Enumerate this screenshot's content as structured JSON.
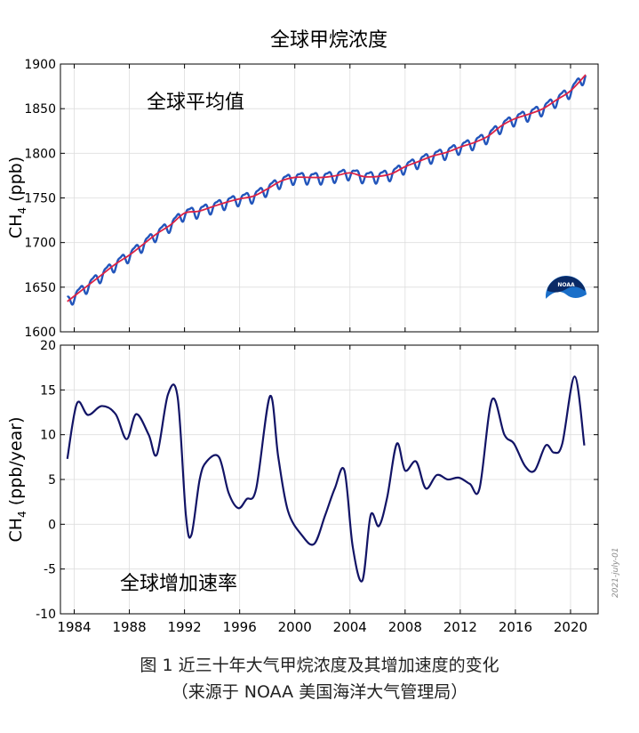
{
  "caption": {
    "line1": "图 1 近三十年大气甲烷浓度及其增加速度的变化",
    "line2": "（来源于 NOAA 美国海洋大气管理局）"
  },
  "date_stamp": "2021-july-01",
  "logo_text": "NOAA",
  "colors": {
    "monthly": "#2255bb",
    "trend": "#dd2244",
    "rate": "#121466",
    "grid": "#dddddd",
    "logo_blue": "#1a6fc9",
    "logo_navy": "#0a2a66"
  },
  "chart_data": [
    {
      "type": "line",
      "title": "全球甲烷浓度",
      "annotation": "全球平均值",
      "ylabel": "CH",
      "ylabel_sub": "4",
      "ylabel_unit": " (ppb)",
      "xlim": [
        1983,
        2022
      ],
      "ylim": [
        1600,
        1900
      ],
      "yticks": [
        1600,
        1650,
        1700,
        1750,
        1800,
        1850,
        1900
      ],
      "xticks": [
        1984,
        1988,
        1992,
        1996,
        2000,
        2004,
        2008,
        2012,
        2016,
        2020
      ],
      "grid": true,
      "seasonal_amplitude": 6,
      "series": [
        {
          "role": "deseasonalized trend",
          "x": [
            1983.5,
            1984,
            1985,
            1986,
            1987,
            1988,
            1989,
            1990,
            1991,
            1992,
            1993,
            1994,
            1995,
            1996,
            1997,
            1998,
            1999,
            2000,
            2001,
            2002,
            2003,
            2004,
            2005,
            2006,
            2007,
            2008,
            2009,
            2010,
            2011,
            2012,
            2013,
            2014,
            2015,
            2016,
            2017,
            2018,
            2019,
            2020,
            2021.1
          ],
          "values": [
            1634,
            1640,
            1652,
            1664,
            1676,
            1686,
            1698,
            1710,
            1720,
            1733,
            1735,
            1740,
            1745,
            1749,
            1752,
            1760,
            1769,
            1773,
            1773,
            1773,
            1775,
            1778,
            1774,
            1774,
            1777,
            1785,
            1791,
            1797,
            1801,
            1807,
            1812,
            1819,
            1831,
            1839,
            1844,
            1850,
            1860,
            1870,
            1888
          ]
        }
      ]
    },
    {
      "type": "line",
      "title": "",
      "annotation": "全球增加速率",
      "ylabel": "CH",
      "ylabel_sub": "4",
      "ylabel_unit": " (ppb/year)",
      "xlim": [
        1983,
        2022
      ],
      "ylim": [
        -10,
        20
      ],
      "yticks": [
        -10,
        -5,
        0,
        5,
        10,
        15,
        20
      ],
      "xticks": [
        1984,
        1988,
        1992,
        1996,
        2000,
        2004,
        2008,
        2012,
        2016,
        2020
      ],
      "grid": true,
      "series": [
        {
          "role": "growth rate",
          "x": [
            1983.5,
            1984.2,
            1985,
            1986,
            1987,
            1987.8,
            1988.5,
            1989.4,
            1990,
            1990.8,
            1991.5,
            1992.1,
            1992.5,
            1993.1,
            1993.6,
            1994.5,
            1995.2,
            1995.9,
            1996.5,
            1997.2,
            1998.2,
            1998.8,
            1999.5,
            2000.5,
            2001.4,
            2002.2,
            2002.9,
            2003.6,
            2004.2,
            2004.9,
            2005.5,
            2006.1,
            2006.7,
            2007.4,
            2008,
            2008.8,
            2009.5,
            2010.3,
            2011.1,
            2011.9,
            2012.7,
            2013.4,
            2014.3,
            2015.2,
            2015.9,
            2016.7,
            2017.4,
            2018.2,
            2018.8,
            2019.4,
            2020.3,
            2021
          ],
          "values": [
            7.3,
            13.5,
            12.2,
            13.2,
            12.3,
            9.5,
            12.3,
            10.0,
            7.8,
            14.5,
            14.2,
            1.0,
            -1.2,
            5.0,
            7.0,
            7.5,
            3.5,
            1.8,
            2.8,
            4.0,
            14.3,
            7.5,
            1.5,
            -1.2,
            -2.2,
            1.0,
            4.0,
            6.0,
            -2.5,
            -6.3,
            1.0,
            -0.2,
            3.0,
            9.0,
            6.0,
            7.0,
            4.0,
            5.5,
            5.0,
            5.2,
            4.5,
            4.0,
            13.9,
            10.0,
            9.0,
            6.5,
            6.0,
            8.8,
            8.0,
            9.0,
            16.5,
            8.8
          ]
        }
      ]
    }
  ]
}
